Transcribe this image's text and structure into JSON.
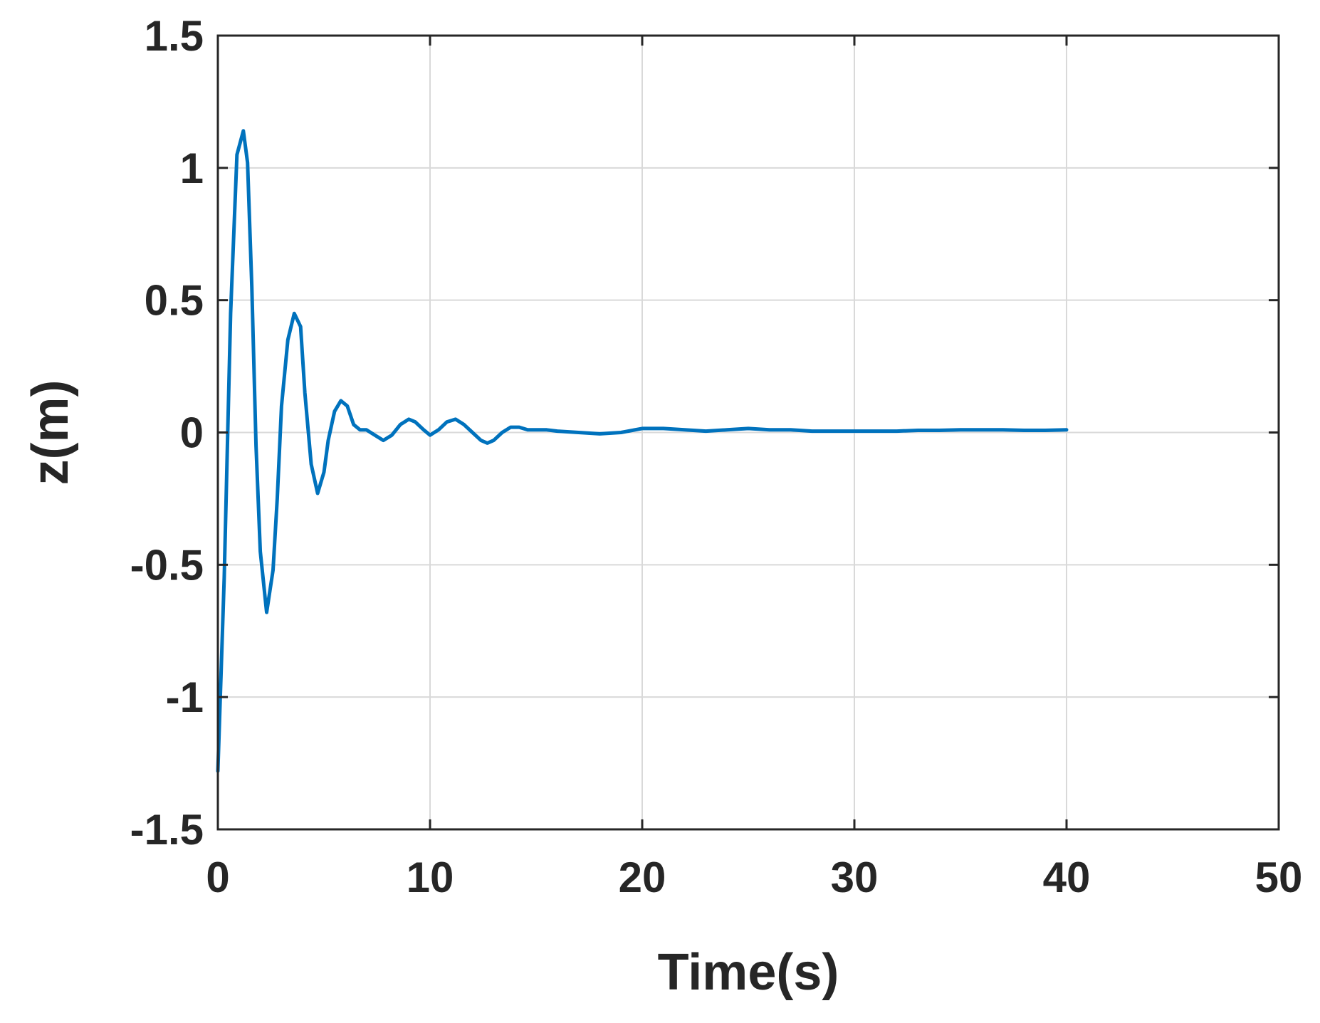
{
  "chart_data": {
    "type": "line",
    "title": "",
    "xlabel": "Time(s)",
    "ylabel": "z(m)",
    "xlim": [
      0,
      50
    ],
    "ylim": [
      -1.5,
      1.5
    ],
    "xticks": [
      0,
      10,
      20,
      30,
      40,
      50
    ],
    "xtick_labels": [
      "0",
      "10",
      "20",
      "30",
      "40",
      "50"
    ],
    "yticks": [
      -1.5,
      -1,
      -0.5,
      0,
      0.5,
      1,
      1.5
    ],
    "ytick_labels": [
      "-1.5",
      "-1",
      "-0.5",
      "0",
      "0.5",
      "1",
      "1.5"
    ],
    "grid": true,
    "legend": "none",
    "series": [
      {
        "color": "#0072BD",
        "x": [
          0,
          0.3,
          0.6,
          0.9,
          1.2,
          1.4,
          1.6,
          1.8,
          2.0,
          2.3,
          2.6,
          2.8,
          3.0,
          3.3,
          3.6,
          3.9,
          4.1,
          4.4,
          4.7,
          5.0,
          5.2,
          5.5,
          5.8,
          6.1,
          6.4,
          6.7,
          7.0,
          7.4,
          7.8,
          8.2,
          8.6,
          9.0,
          9.3,
          9.7,
          10.0,
          10.4,
          10.8,
          11.2,
          11.6,
          12.0,
          12.4,
          12.7,
          13.0,
          13.4,
          13.8,
          14.2,
          14.6,
          15.0,
          15.5,
          16.0,
          17.0,
          18.0,
          19.0,
          20.0,
          21.0,
          22.0,
          23.0,
          24.0,
          25.0,
          26.0,
          27.0,
          28.0,
          29.0,
          30.0,
          31.0,
          32.0,
          33.0,
          34.0,
          35.0,
          36.0,
          37.0,
          38.0,
          39.0,
          40.0
        ],
        "y": [
          -1.28,
          -0.55,
          0.45,
          1.05,
          1.14,
          1.02,
          0.55,
          -0.05,
          -0.45,
          -0.68,
          -0.52,
          -0.25,
          0.1,
          0.35,
          0.45,
          0.4,
          0.15,
          -0.12,
          -0.23,
          -0.15,
          -0.03,
          0.08,
          0.12,
          0.1,
          0.03,
          0.01,
          0.01,
          -0.01,
          -0.03,
          -0.01,
          0.03,
          0.05,
          0.04,
          0.01,
          -0.01,
          0.01,
          0.04,
          0.05,
          0.03,
          0.0,
          -0.03,
          -0.04,
          -0.03,
          0.0,
          0.02,
          0.02,
          0.01,
          0.01,
          0.01,
          0.005,
          0.0,
          -0.005,
          0.0,
          0.015,
          0.015,
          0.01,
          0.005,
          0.01,
          0.015,
          0.01,
          0.01,
          0.005,
          0.005,
          0.005,
          0.005,
          0.005,
          0.008,
          0.008,
          0.01,
          0.01,
          0.01,
          0.008,
          0.008,
          0.01
        ]
      }
    ]
  }
}
